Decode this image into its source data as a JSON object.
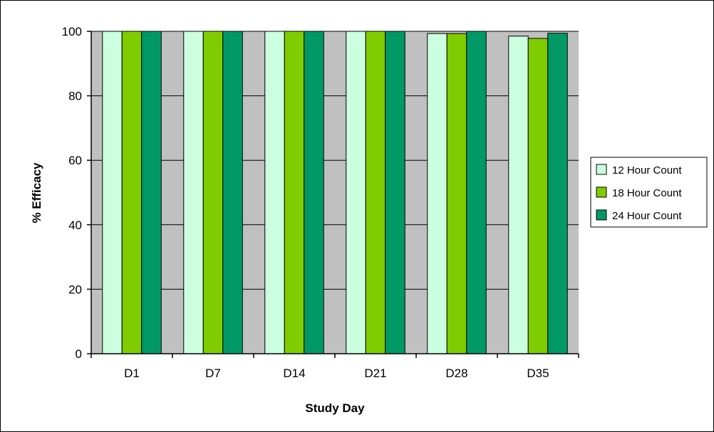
{
  "chart_data": {
    "type": "bar",
    "title": "",
    "xlabel": "Study Day",
    "ylabel": "% Efficacy",
    "categories": [
      "D1",
      "D7",
      "D14",
      "D21",
      "D28",
      "D35"
    ],
    "series": [
      {
        "name": "12 Hour Count",
        "color": "#ccffe0",
        "values": [
          100,
          100,
          100,
          100,
          99.3,
          98.5
        ]
      },
      {
        "name": "18 Hour Count",
        "color": "#7fcc00",
        "values": [
          100,
          100,
          100,
          100,
          99.3,
          97.8
        ]
      },
      {
        "name": "24 Hour Count",
        "color": "#009966",
        "values": [
          100,
          100,
          100,
          100,
          100,
          99.4
        ]
      }
    ],
    "ylim": [
      0,
      100
    ],
    "yticks": [
      0,
      20,
      40,
      60,
      80,
      100
    ],
    "grid": true,
    "plot_background": "#c0c0c0",
    "legend_position": "right"
  }
}
